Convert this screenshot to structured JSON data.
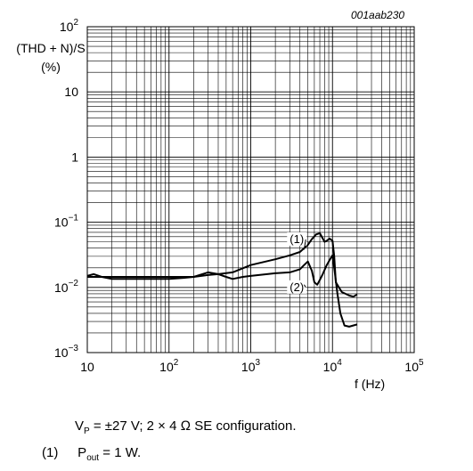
{
  "chart_data": {
    "type": "line",
    "figure_id": "001aab230",
    "ylabel": [
      "(THD + N)/S",
      "(%)"
    ],
    "xlabel": "f (Hz)",
    "x_scale": "log",
    "y_scale": "log",
    "xlim": [
      10,
      100000
    ],
    "ylim": [
      0.001,
      100
    ],
    "x_ticks": [
      {
        "value": 10,
        "base": "10",
        "exp": ""
      },
      {
        "value": 100,
        "base": "10",
        "exp": "2"
      },
      {
        "value": 1000,
        "base": "10",
        "exp": "3"
      },
      {
        "value": 10000,
        "base": "10",
        "exp": "4"
      },
      {
        "value": 100000,
        "base": "10",
        "exp": "5"
      }
    ],
    "y_ticks": [
      {
        "value": 100,
        "base": "10",
        "exp": "2"
      },
      {
        "value": 10,
        "base": "10",
        "exp": ""
      },
      {
        "value": 1,
        "base": "1",
        "exp": ""
      },
      {
        "value": 0.1,
        "base": "10",
        "exp": "−1"
      },
      {
        "value": 0.01,
        "base": "10",
        "exp": "−2"
      },
      {
        "value": 0.001,
        "base": "10",
        "exp": "−3"
      }
    ],
    "grid": true,
    "series": [
      {
        "label": "(1)",
        "points": [
          [
            10,
            0.015
          ],
          [
            12,
            0.016
          ],
          [
            15,
            0.0145
          ],
          [
            20,
            0.0135
          ],
          [
            30,
            0.0135
          ],
          [
            50,
            0.0135
          ],
          [
            100,
            0.0135
          ],
          [
            150,
            0.014
          ],
          [
            200,
            0.0145
          ],
          [
            300,
            0.017
          ],
          [
            400,
            0.016
          ],
          [
            600,
            0.017
          ],
          [
            1000,
            0.022
          ],
          [
            2000,
            0.027
          ],
          [
            3000,
            0.031
          ],
          [
            4000,
            0.035
          ],
          [
            5000,
            0.045
          ],
          [
            5600,
            0.055
          ],
          [
            6300,
            0.065
          ],
          [
            7000,
            0.068
          ],
          [
            7500,
            0.058
          ],
          [
            8000,
            0.05
          ],
          [
            8500,
            0.052
          ],
          [
            9200,
            0.056
          ],
          [
            10000,
            0.052
          ],
          [
            10500,
            0.03
          ],
          [
            11000,
            0.012
          ],
          [
            13000,
            0.0085
          ],
          [
            16000,
            0.0075
          ],
          [
            18000,
            0.0072
          ],
          [
            20000,
            0.0078
          ]
        ]
      },
      {
        "label": "(2)",
        "points": [
          [
            10,
            0.0145
          ],
          [
            15,
            0.0145
          ],
          [
            20,
            0.0145
          ],
          [
            30,
            0.0145
          ],
          [
            50,
            0.0145
          ],
          [
            100,
            0.0145
          ],
          [
            200,
            0.0145
          ],
          [
            300,
            0.0155
          ],
          [
            400,
            0.016
          ],
          [
            500,
            0.0145
          ],
          [
            600,
            0.0135
          ],
          [
            800,
            0.0145
          ],
          [
            1000,
            0.015
          ],
          [
            2000,
            0.0165
          ],
          [
            3000,
            0.017
          ],
          [
            4000,
            0.019
          ],
          [
            4500,
            0.022
          ],
          [
            5000,
            0.025
          ],
          [
            5600,
            0.018
          ],
          [
            6000,
            0.012
          ],
          [
            6500,
            0.011
          ],
          [
            7000,
            0.013
          ],
          [
            7600,
            0.016
          ],
          [
            8500,
            0.022
          ],
          [
            9500,
            0.028
          ],
          [
            10000,
            0.031
          ],
          [
            10500,
            0.02
          ],
          [
            11500,
            0.008
          ],
          [
            12500,
            0.004
          ],
          [
            14000,
            0.0026
          ],
          [
            16000,
            0.0025
          ],
          [
            20000,
            0.0027
          ]
        ]
      }
    ],
    "series_labels": [
      {
        "text": "(1)",
        "x": 3000,
        "y": 0.048,
        "leader_to": [
          4500,
          0.038
        ]
      },
      {
        "text": "(2)",
        "x": 3000,
        "y": 0.0088,
        "leader_to": [
          4500,
          0.011
        ]
      }
    ],
    "caption": {
      "v": "V",
      "v_sub": "P",
      "rest": " = ±27 V; 2 × 4 Ω SE configuration."
    },
    "notes": [
      {
        "num": "(1)",
        "p": "P",
        "p_sub": "out",
        "rest": " = 1 W."
      }
    ]
  }
}
